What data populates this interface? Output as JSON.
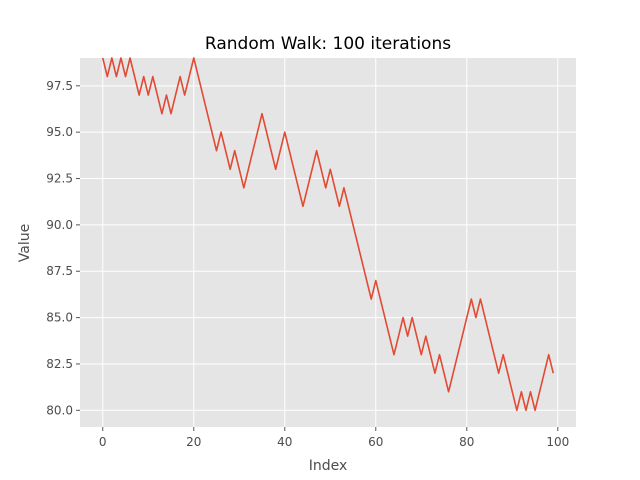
{
  "chart_data": {
    "type": "line",
    "title": "Random Walk: 100 iterations",
    "xlabel": "Index",
    "ylabel": "Value",
    "xlim": [
      -5,
      104
    ],
    "ylim": [
      79.1,
      99.0
    ],
    "x_ticks": [
      0,
      20,
      40,
      60,
      80,
      100
    ],
    "x_tick_labels": [
      "0",
      "20",
      "40",
      "60",
      "80",
      "100"
    ],
    "y_ticks": [
      80.0,
      82.5,
      85.0,
      87.5,
      90.0,
      92.5,
      95.0,
      97.5
    ],
    "y_tick_labels": [
      "80.0",
      "82.5",
      "85.0",
      "87.5",
      "90.0",
      "92.5",
      "95.0",
      "97.5"
    ],
    "grid": true,
    "background": "#e5e5e5",
    "series": [
      {
        "color": "#e24a33",
        "x": [
          0,
          1,
          2,
          3,
          4,
          5,
          6,
          7,
          8,
          9,
          10,
          11,
          12,
          13,
          14,
          15,
          16,
          17,
          18,
          19,
          20,
          21,
          22,
          23,
          24,
          25,
          26,
          27,
          28,
          29,
          30,
          31,
          32,
          33,
          34,
          35,
          36,
          37,
          38,
          39,
          40,
          41,
          42,
          43,
          44,
          45,
          46,
          47,
          48,
          49,
          50,
          51,
          52,
          53,
          54,
          55,
          56,
          57,
          58,
          59,
          60,
          61,
          62,
          63,
          64,
          65,
          66,
          67,
          68,
          69,
          70,
          71,
          72,
          73,
          74,
          75,
          76,
          77,
          78,
          79,
          80,
          81,
          82,
          83,
          84,
          85,
          86,
          87,
          88,
          89,
          90,
          91,
          92,
          93,
          94,
          95,
          96,
          97,
          98,
          99
        ],
        "values": [
          99,
          98,
          99,
          98,
          99,
          98,
          99,
          98,
          97,
          98,
          97,
          98,
          97,
          96,
          97,
          96,
          97,
          98,
          97,
          98,
          99,
          98,
          97,
          96,
          95,
          94,
          95,
          94,
          93,
          94,
          93,
          92,
          93,
          94,
          95,
          96,
          95,
          94,
          93,
          94,
          95,
          94,
          93,
          92,
          91,
          92,
          93,
          94,
          93,
          92,
          93,
          92,
          91,
          92,
          91,
          90,
          89,
          88,
          87,
          86,
          87,
          86,
          85,
          84,
          83,
          84,
          85,
          84,
          85,
          84,
          83,
          84,
          83,
          82,
          83,
          82,
          81,
          82,
          83,
          84,
          85,
          86,
          85,
          86,
          85,
          84,
          83,
          82,
          83,
          82,
          81,
          80,
          81,
          80,
          81,
          80,
          81,
          82,
          83,
          82
        ]
      }
    ]
  }
}
